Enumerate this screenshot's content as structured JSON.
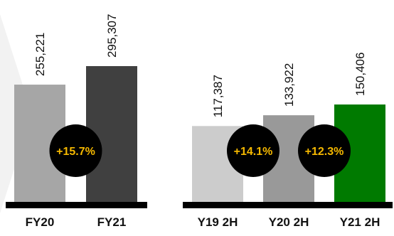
{
  "colors": {
    "background": "#ffffff",
    "decor": "#f2f2f2",
    "baseline": "#000000",
    "circle": "#000000",
    "change_text": "#f5b800"
  },
  "chart_data": [
    {
      "type": "bar",
      "categories": [
        "FY20",
        "FY21"
      ],
      "values": [
        255221,
        295307
      ],
      "value_labels": [
        "255,221",
        "295,307"
      ],
      "bar_colors": [
        "#a6a6a6",
        "#404040"
      ],
      "changes": [
        "+15.7%"
      ],
      "title": "",
      "xlabel": "",
      "ylabel": "",
      "grid": false,
      "legend": "none"
    },
    {
      "type": "bar",
      "categories": [
        "Y19 2H",
        "Y20 2H",
        "Y21 2H"
      ],
      "values": [
        117387,
        133922,
        150406
      ],
      "value_labels": [
        "117,387",
        "133,922",
        "150,406"
      ],
      "bar_colors": [
        "#cccccc",
        "#999999",
        "#007a00"
      ],
      "changes": [
        "+14.1%",
        "+12.3%"
      ],
      "title": "",
      "xlabel": "",
      "ylabel": "",
      "grid": false,
      "legend": "none"
    }
  ]
}
